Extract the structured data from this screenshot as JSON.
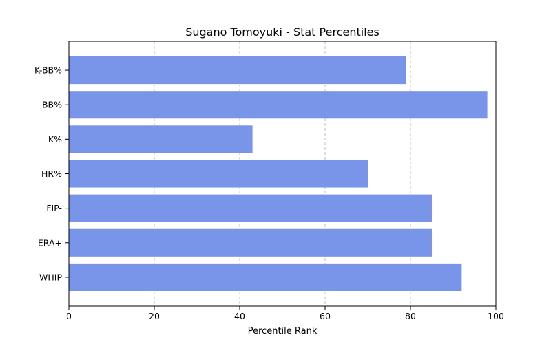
{
  "chart_data": {
    "type": "bar",
    "orientation": "horizontal",
    "title": "Sugano Tomoyuki - Stat Percentiles",
    "xlabel": "Percentile Rank",
    "ylabel": "",
    "xlim": [
      0,
      100
    ],
    "xticks": [
      0,
      20,
      40,
      60,
      80,
      100
    ],
    "categories": [
      "K-BB%",
      "BB%",
      "K%",
      "HR%",
      "FIP-",
      "ERA+",
      "WHIP"
    ],
    "values": [
      79,
      98,
      43,
      70,
      85,
      85,
      92
    ],
    "bar_color": "#7995e9",
    "grid": "x-dashed"
  }
}
